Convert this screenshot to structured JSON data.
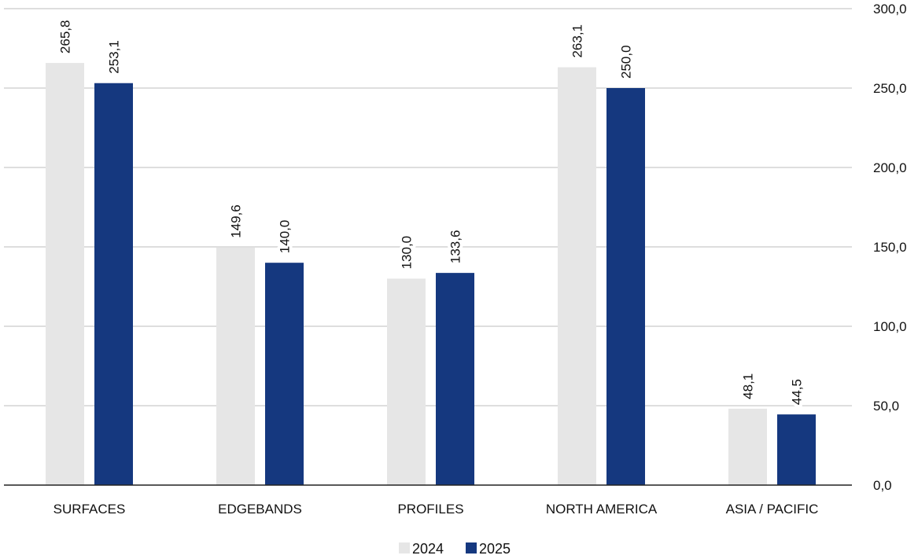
{
  "chart_data": {
    "type": "bar",
    "categories": [
      "SURFACES",
      "EDGEBANDS",
      "PROFILES",
      "NORTH AMERICA",
      "ASIA / PACIFIC"
    ],
    "series": [
      {
        "name": "2024",
        "color": "#e6e6e6",
        "values": [
          265.8,
          149.6,
          130.0,
          263.1,
          48.1
        ],
        "labels": [
          "265,8",
          "149,6",
          "130,0",
          "263,1",
          "48,1"
        ]
      },
      {
        "name": "2025",
        "color": "#15387f",
        "values": [
          253.1,
          140.0,
          133.6,
          250.0,
          44.5
        ],
        "labels": [
          "253,1",
          "140,0",
          "133,6",
          "250,0",
          "44,5"
        ]
      }
    ],
    "ylim": [
      0,
      300
    ],
    "yticks": [
      0,
      50,
      100,
      150,
      200,
      250,
      300
    ],
    "ytick_labels": [
      "0,0",
      "50,0",
      "100,0",
      "150,0",
      "200,0",
      "250,0",
      "300,0"
    ],
    "y_axis_position": "right",
    "grid": true,
    "legend_position": "bottom-center",
    "data_label_orientation": "vertical"
  }
}
